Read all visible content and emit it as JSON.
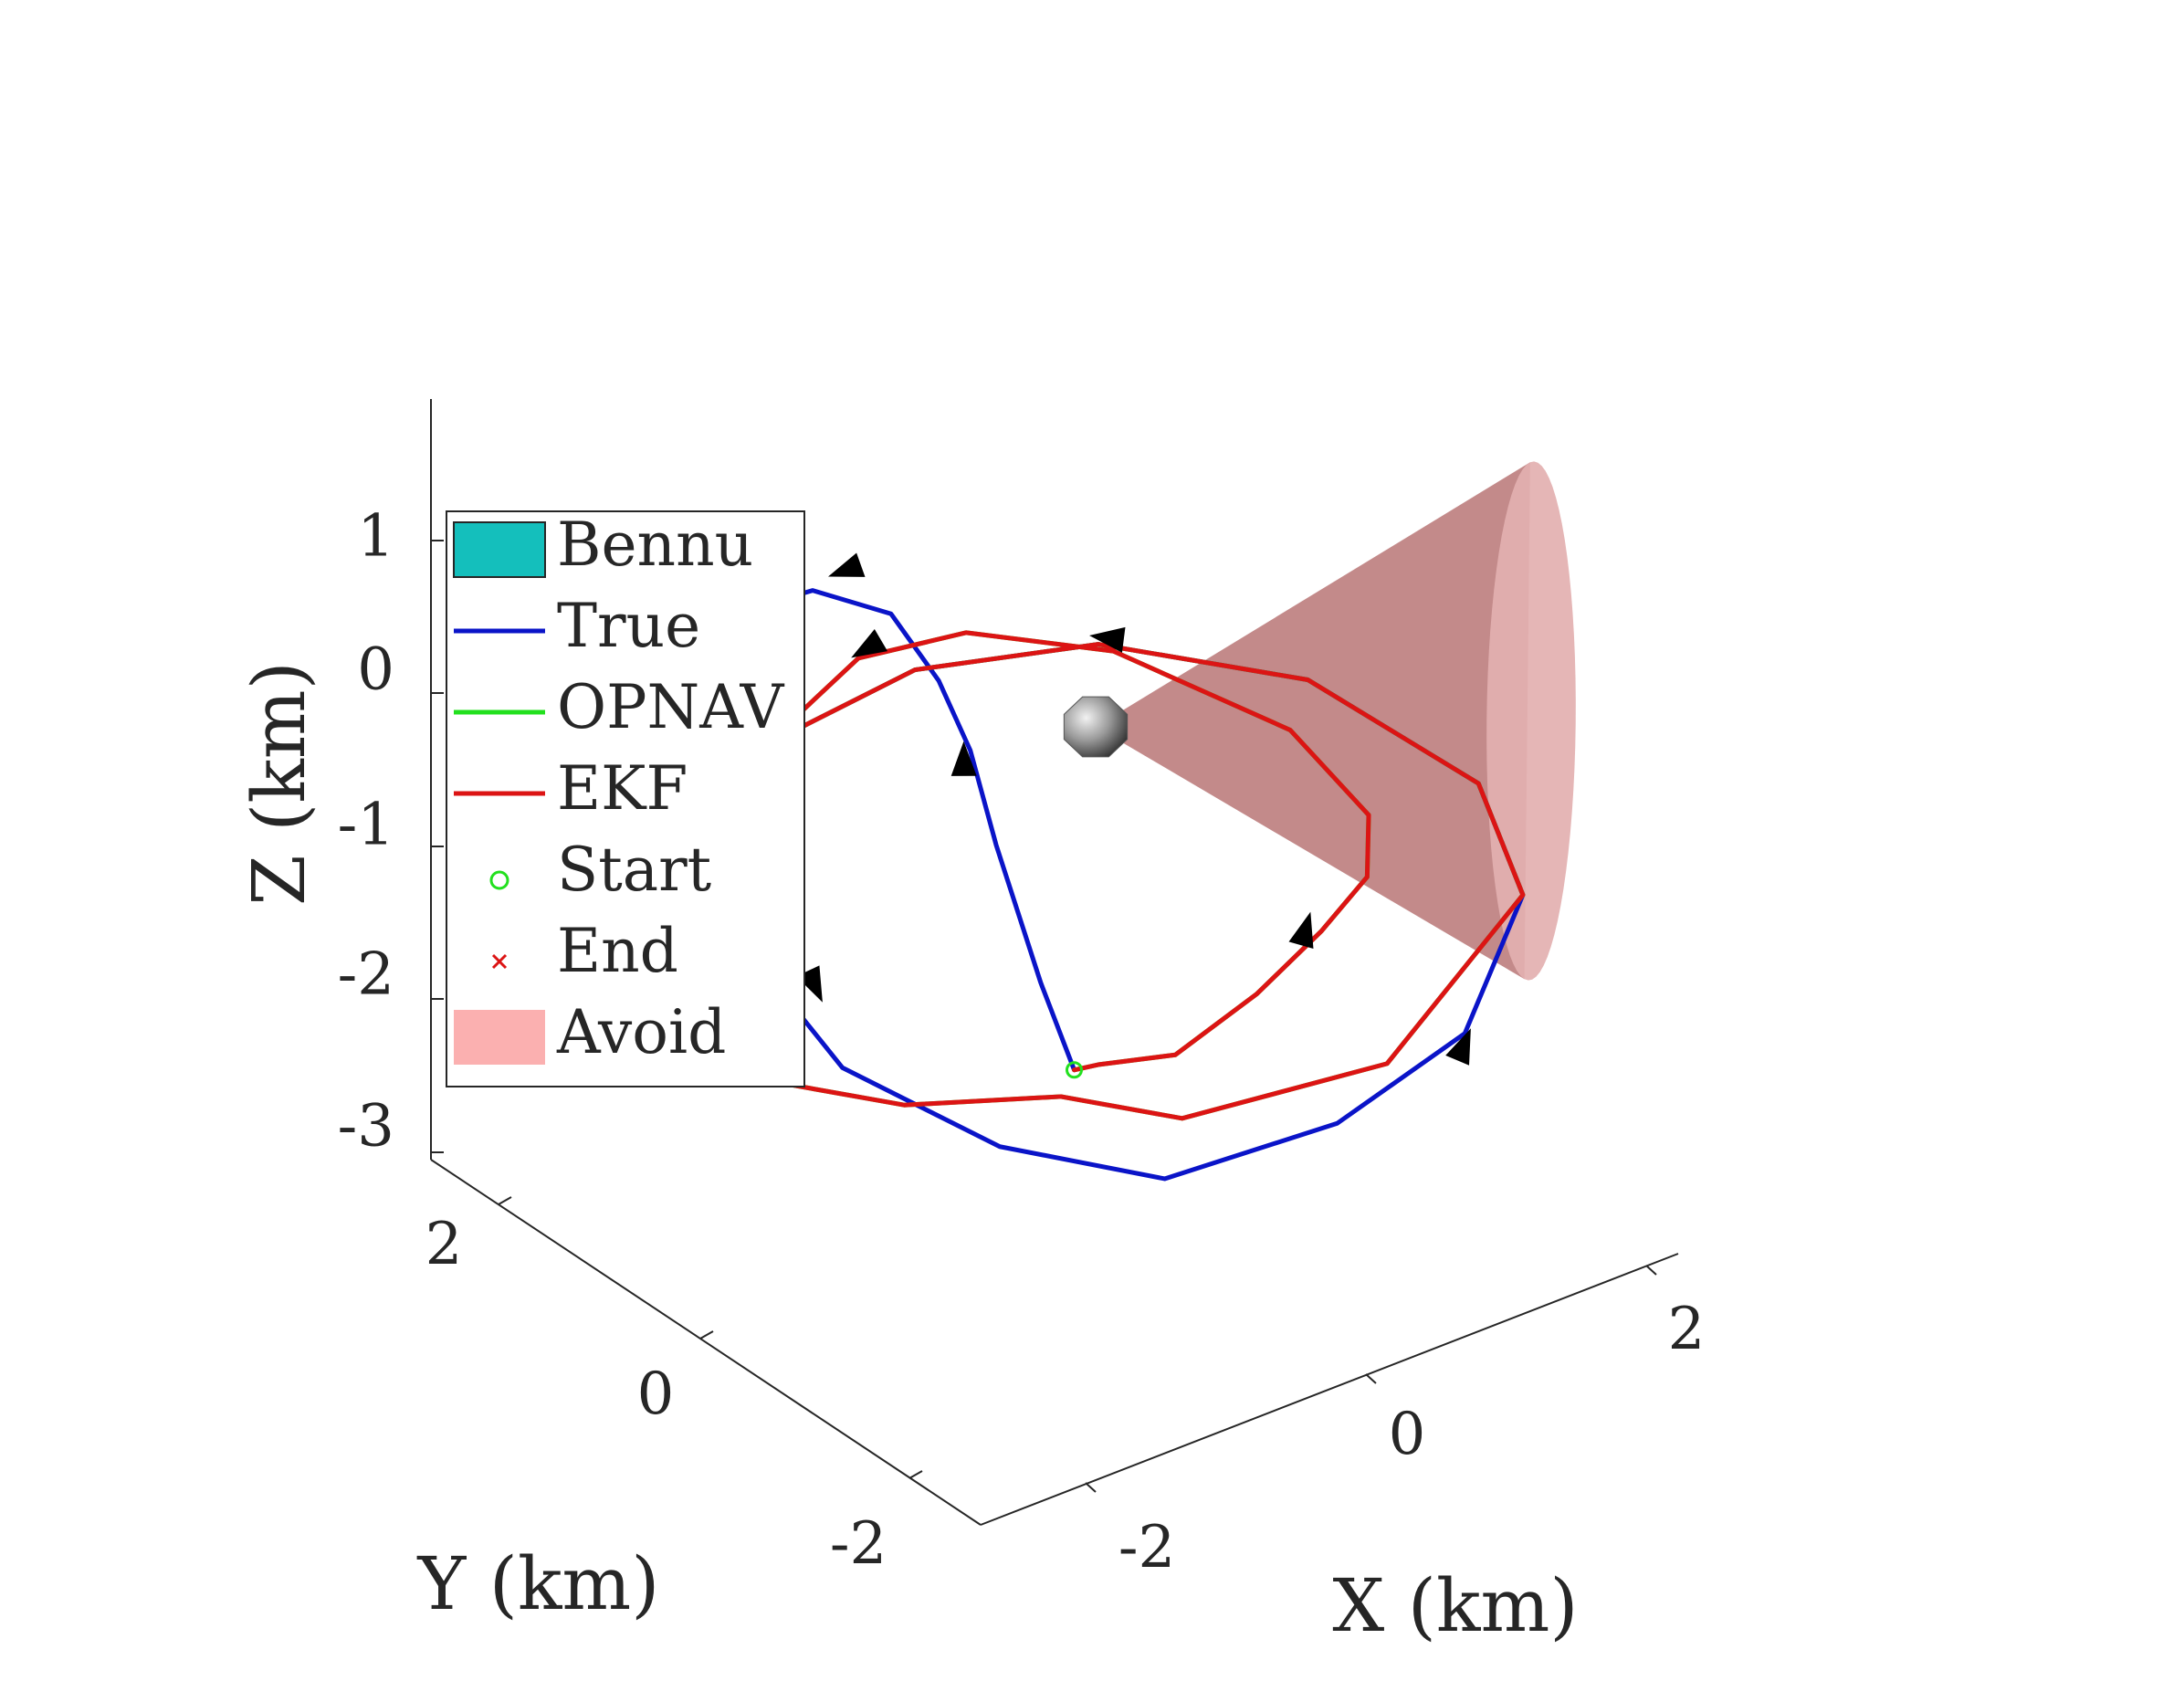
{
  "chart_data": {
    "type": "line3d",
    "title": "",
    "xlabel": "X (km)",
    "ylabel": "Y (km)",
    "zlabel": "Z (km)",
    "xlim": [
      -3,
      3
    ],
    "ylim": [
      -3,
      3
    ],
    "zlim": [
      -3,
      1.8
    ],
    "x_ticks": [
      "-2",
      "0",
      "2"
    ],
    "y_ticks": [
      "2",
      "0",
      "-2"
    ],
    "z_ticks": [
      "1",
      "0",
      "-1",
      "-2",
      "-3"
    ],
    "grid": false,
    "legend_position": "upper-left",
    "legend": [
      {
        "label": "Bennu",
        "kind": "patch",
        "color": "#14bfbc"
      },
      {
        "label": "True",
        "kind": "line",
        "color": "#0a14c8"
      },
      {
        "label": "OPNAV",
        "kind": "line",
        "color": "#22e01e"
      },
      {
        "label": "EKF",
        "kind": "line",
        "color": "#dc1414"
      },
      {
        "label": "Start",
        "kind": "marker-circle",
        "color": "#22e01e"
      },
      {
        "label": "End",
        "kind": "marker-x",
        "color": "#dc1414"
      },
      {
        "label": "Avoid",
        "kind": "patch",
        "color": "#fbb0b0"
      }
    ],
    "series": [
      {
        "name": "True",
        "color": "#0a14c8",
        "points": [
          [
            -0.4,
            -0.34,
            -1.95
          ],
          [
            -0.53,
            -0.19,
            -1.4
          ],
          [
            -0.71,
            0.0,
            -0.52
          ],
          [
            -0.88,
            0.02,
            0.15
          ],
          [
            -1.12,
            0.0,
            0.7
          ],
          [
            -1.38,
            0.11,
            1.18
          ],
          [
            -1.7,
            0.44,
            1.3
          ],
          [
            -1.96,
            0.79,
            1.1
          ],
          [
            -2.03,
            0.76,
            0.55
          ],
          [
            -1.86,
            0.46,
            -0.3
          ],
          [
            -1.96,
            0.54,
            -1.15
          ],
          [
            -1.69,
            0.16,
            -1.7
          ],
          [
            -1.12,
            -0.6,
            -2.08
          ],
          [
            -0.51,
            -1.38,
            -2.16
          ],
          [
            0.22,
            -2.07,
            -1.75
          ],
          [
            0.68,
            -2.69,
            -1.05
          ],
          [
            1.0,
            -2.82,
            -0.2
          ],
          [
            0.85,
            -2.59,
            0.48
          ],
          [
            0.17,
            -1.85,
            1.07
          ],
          [
            -0.65,
            -0.92,
            1.18
          ],
          [
            -1.34,
            -0.07,
            0.88
          ],
          [
            -1.77,
            0.55,
            0.35
          ],
          [
            -1.95,
            0.87,
            -0.15
          ]
        ]
      },
      {
        "name": "OPNAV",
        "color": "#22e01e",
        "points": [
          [
            -0.4,
            -0.34,
            -1.95
          ],
          [
            -0.36,
            -0.52,
            -1.85
          ],
          [
            -0.1,
            -0.92,
            -1.7
          ],
          [
            0.16,
            -1.36,
            -1.2
          ],
          [
            0.36,
            -1.72,
            -0.7
          ],
          [
            0.47,
            -2.02,
            -0.25
          ],
          [
            0.43,
            -2.09,
            0.2
          ],
          [
            0.03,
            -1.87,
            0.8
          ],
          [
            -0.68,
            -1.11,
            1.23
          ],
          [
            -1.25,
            -0.45,
            1.26
          ],
          [
            -1.62,
            0.1,
            0.98
          ],
          [
            -1.81,
            0.46,
            0.5
          ],
          [
            -1.99,
            0.82,
            -0.1
          ],
          [
            -2.08,
            1.01,
            -0.85
          ],
          [
            -2.01,
            1.03,
            -1.55
          ],
          [
            -1.73,
            0.77,
            -2.05
          ],
          [
            -1.25,
            0.16,
            -2.1
          ],
          [
            -0.64,
            -0.54,
            -1.95
          ],
          [
            -0.24,
            -1.18,
            -1.95
          ],
          [
            0.59,
            -2.05,
            -1.5
          ],
          [
            1.0,
            -2.82,
            -0.2
          ],
          [
            0.85,
            -2.59,
            0.48
          ],
          [
            0.17,
            -1.85,
            1.07
          ],
          [
            -0.65,
            -0.92,
            1.18
          ],
          [
            -1.34,
            -0.07,
            0.88
          ],
          [
            -1.77,
            0.55,
            0.35
          ],
          [
            -1.95,
            0.87,
            -0.15
          ]
        ]
      },
      {
        "name": "EKF",
        "color": "#dc1414",
        "points": [
          [
            -0.4,
            -0.34,
            -1.95
          ],
          [
            -0.36,
            -0.52,
            -1.85
          ],
          [
            -0.1,
            -0.92,
            -1.7
          ],
          [
            0.16,
            -1.36,
            -1.2
          ],
          [
            0.36,
            -1.72,
            -0.7
          ],
          [
            0.47,
            -2.02,
            -0.25
          ],
          [
            0.43,
            -2.09,
            0.2
          ],
          [
            0.03,
            -1.87,
            0.8
          ],
          [
            -0.68,
            -1.11,
            1.23
          ],
          [
            -1.25,
            -0.45,
            1.26
          ],
          [
            -1.62,
            0.1,
            0.98
          ],
          [
            -1.81,
            0.46,
            0.5
          ],
          [
            -1.99,
            0.82,
            -0.1
          ],
          [
            -2.08,
            1.01,
            -0.85
          ],
          [
            -2.01,
            1.03,
            -1.55
          ],
          [
            -1.73,
            0.77,
            -2.05
          ],
          [
            -1.25,
            0.16,
            -2.1
          ],
          [
            -0.64,
            -0.54,
            -1.95
          ],
          [
            -0.24,
            -1.18,
            -1.95
          ],
          [
            0.59,
            -2.05,
            -1.5
          ],
          [
            1.0,
            -2.82,
            -0.2
          ],
          [
            0.85,
            -2.59,
            0.48
          ],
          [
            0.17,
            -1.85,
            1.07
          ],
          [
            -0.65,
            -0.92,
            1.18
          ],
          [
            -1.34,
            -0.07,
            0.88
          ],
          [
            -1.77,
            0.55,
            0.35
          ],
          [
            -1.95,
            0.87,
            -0.15
          ]
        ]
      }
    ],
    "markers": {
      "start": [
        -0.4,
        -0.34,
        -1.95
      ],
      "end": [
        -1.95,
        0.87,
        -0.15
      ]
    },
    "direction_arrows": [
      {
        "at": [
          -1.32,
          0.65,
          1.2
        ],
        "toward": [
          -1.6,
          0.72,
          1.16
        ]
      },
      {
        "at": [
          -1.42,
          0.3,
          0.88
        ],
        "toward": [
          -1.6,
          0.38,
          0.78
        ]
      },
      {
        "at": [
          -1.42,
          0.8,
          -1.55
        ],
        "toward": [
          -1.38,
          0.72,
          -1.72
        ]
      },
      {
        "at": [
          -0.62,
          -0.96,
          1.23
        ],
        "toward": [
          -0.82,
          -0.78,
          1.26
        ]
      },
      {
        "at": [
          -0.81,
          0.18,
          0.0
        ],
        "toward": [
          -0.84,
          0.14,
          0.18
        ]
      },
      {
        "at": [
          0.33,
          -1.61,
          -0.72
        ],
        "toward": [
          0.37,
          -1.64,
          -0.52
        ]
      },
      {
        "at": [
          0.82,
          -2.49,
          -1.26
        ],
        "toward": [
          0.88,
          -2.54,
          -1.05
        ]
      }
    ],
    "bodies": [
      {
        "name": "Bennu",
        "center": [
          0,
          0,
          0
        ],
        "radius": 0.25
      }
    ],
    "avoid_cone": {
      "apex": [
        0,
        0,
        0
      ],
      "axis_end": [
        1.8,
        -1.8,
        0.2
      ],
      "half_angle_deg": 30
    }
  }
}
